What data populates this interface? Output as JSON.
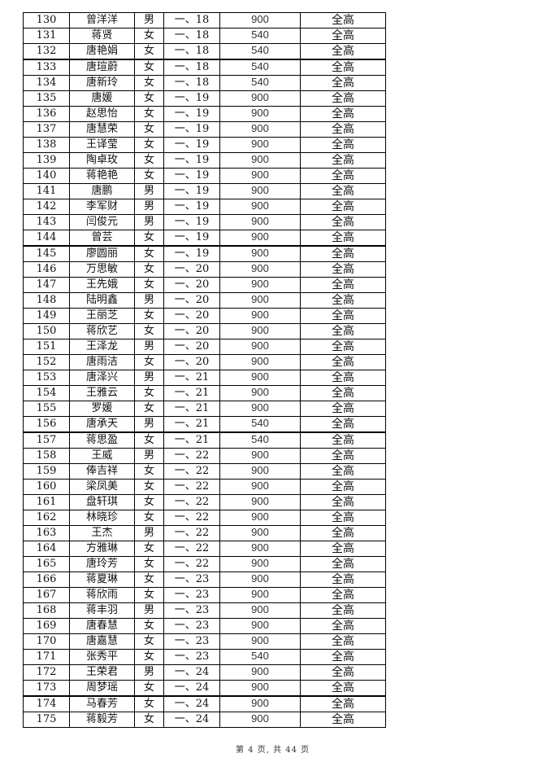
{
  "rows": [
    [
      "130",
      "曾洋洋",
      "男",
      "一、18",
      "900",
      "全高"
    ],
    [
      "131",
      "蒋贤",
      "女",
      "一、18",
      "540",
      "全高"
    ],
    [
      "132",
      "唐艳娟",
      "女",
      "一、18",
      "540",
      "全高"
    ],
    [
      "133",
      "唐瑄蔚",
      "女",
      "一、18",
      "540",
      "全高"
    ],
    [
      "134",
      "唐新玲",
      "女",
      "一、18",
      "540",
      "全高"
    ],
    [
      "135",
      "唐媛",
      "女",
      "一、19",
      "900",
      "全高"
    ],
    [
      "136",
      "赵思怡",
      "女",
      "一、19",
      "900",
      "全高"
    ],
    [
      "137",
      "唐慧荣",
      "女",
      "一、19",
      "900",
      "全高"
    ],
    [
      "138",
      "王译莹",
      "女",
      "一、19",
      "900",
      "全高"
    ],
    [
      "139",
      "陶卓玫",
      "女",
      "一、19",
      "900",
      "全高"
    ],
    [
      "140",
      "蒋艳艳",
      "女",
      "一、19",
      "900",
      "全高"
    ],
    [
      "141",
      "唐鹏",
      "男",
      "一、19",
      "900",
      "全高"
    ],
    [
      "142",
      "李军财",
      "男",
      "一、19",
      "900",
      "全高"
    ],
    [
      "143",
      "闫俊元",
      "男",
      "一、19",
      "900",
      "全高"
    ],
    [
      "144",
      "曾芸",
      "女",
      "一、19",
      "900",
      "全高"
    ],
    [
      "145",
      "廖圆丽",
      "女",
      "一、19",
      "900",
      "全高"
    ],
    [
      "146",
      "万思敏",
      "女",
      "一、20",
      "900",
      "全高"
    ],
    [
      "147",
      "王先娥",
      "女",
      "一、20",
      "900",
      "全高"
    ],
    [
      "148",
      "陆明鑫",
      "男",
      "一、20",
      "900",
      "全高"
    ],
    [
      "149",
      "王丽芝",
      "女",
      "一、20",
      "900",
      "全高"
    ],
    [
      "150",
      "蒋欣艺",
      "女",
      "一、20",
      "900",
      "全高"
    ],
    [
      "151",
      "王泽龙",
      "男",
      "一、20",
      "900",
      "全高"
    ],
    [
      "152",
      "唐雨洁",
      "女",
      "一、20",
      "900",
      "全高"
    ],
    [
      "153",
      "唐泽兴",
      "男",
      "一、21",
      "900",
      "全高"
    ],
    [
      "154",
      "王雅云",
      "女",
      "一、21",
      "900",
      "全高"
    ],
    [
      "155",
      "罗媛",
      "女",
      "一、21",
      "900",
      "全高"
    ],
    [
      "156",
      "唐承天",
      "男",
      "一、21",
      "540",
      "全高"
    ],
    [
      "157",
      "蒋思盈",
      "女",
      "一、21",
      "540",
      "全高"
    ],
    [
      "158",
      "王威",
      "男",
      "一、22",
      "900",
      "全高"
    ],
    [
      "159",
      "俸吉祥",
      "女",
      "一、22",
      "900",
      "全高"
    ],
    [
      "160",
      "梁凤美",
      "女",
      "一、22",
      "900",
      "全高"
    ],
    [
      "161",
      "盘轩琪",
      "女",
      "一、22",
      "900",
      "全高"
    ],
    [
      "162",
      "林晓珍",
      "女",
      "一、22",
      "900",
      "全高"
    ],
    [
      "163",
      "王杰",
      "男",
      "一、22",
      "900",
      "全高"
    ],
    [
      "164",
      "方雅琳",
      "女",
      "一、22",
      "900",
      "全高"
    ],
    [
      "165",
      "唐玲芳",
      "女",
      "一、22",
      "900",
      "全高"
    ],
    [
      "166",
      "蒋夏琳",
      "女",
      "一、23",
      "900",
      "全高"
    ],
    [
      "167",
      "蒋欣雨",
      "女",
      "一、23",
      "900",
      "全高"
    ],
    [
      "168",
      "蒋丰羽",
      "男",
      "一、23",
      "900",
      "全高"
    ],
    [
      "169",
      "唐春慧",
      "女",
      "一、23",
      "900",
      "全高"
    ],
    [
      "170",
      "唐嘉慧",
      "女",
      "一、23",
      "900",
      "全高"
    ],
    [
      "171",
      "张秀平",
      "女",
      "一、23",
      "540",
      "全高"
    ],
    [
      "172",
      "王荣君",
      "男",
      "一、24",
      "900",
      "全高"
    ],
    [
      "173",
      "周梦瑶",
      "女",
      "一、24",
      "900",
      "全高"
    ],
    [
      "174",
      "马春芳",
      "女",
      "一、24",
      "900",
      "全高"
    ],
    [
      "175",
      "蒋毅芳",
      "女",
      "一、24",
      "900",
      "全高"
    ]
  ],
  "footer": "第 4 页, 共 44 页"
}
